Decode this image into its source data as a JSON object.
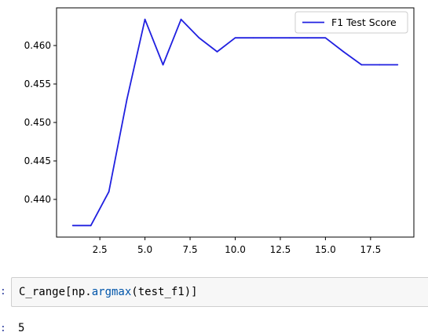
{
  "chart_data": {
    "type": "line",
    "series": [
      {
        "name": "F1 Test Score",
        "color": "#2020e0",
        "points": [
          [
            1,
            0.4366
          ],
          [
            2,
            0.4366
          ],
          [
            3,
            0.441
          ],
          [
            4,
            0.453
          ],
          [
            5,
            0.4634
          ],
          [
            6,
            0.4575
          ],
          [
            7,
            0.4634
          ],
          [
            8,
            0.461
          ],
          [
            9,
            0.4592
          ],
          [
            10,
            0.461
          ],
          [
            11,
            0.461
          ],
          [
            12,
            0.461
          ],
          [
            13,
            0.461
          ],
          [
            14,
            0.461
          ],
          [
            15,
            0.461
          ],
          [
            16,
            0.4592
          ],
          [
            17,
            0.4575
          ],
          [
            18,
            0.4575
          ],
          [
            19,
            0.4575
          ]
        ]
      }
    ],
    "xlim": [
      0.1,
      19.9
    ],
    "ylim": [
      0.4351,
      0.4649
    ],
    "x_ticks": [
      2.5,
      5.0,
      7.5,
      10.0,
      12.5,
      15.0,
      17.5
    ],
    "x_tick_labels": [
      "2.5",
      "5.0",
      "7.5",
      "10.0",
      "12.5",
      "15.0",
      "17.5"
    ],
    "y_ticks": [
      0.44,
      0.445,
      0.45,
      0.455,
      0.46
    ],
    "y_tick_labels": [
      "0.440",
      "0.445",
      "0.450",
      "0.455",
      "0.460"
    ],
    "legend_position": "top-right",
    "grid": false,
    "title": "",
    "xlabel": "",
    "ylabel": ""
  },
  "notebook": {
    "input_prompt": ":",
    "code": {
      "part1": "C_range[np.",
      "func": "argmax",
      "part2": "(test_f1)]"
    },
    "output_prompt": ":",
    "output_value": "5"
  }
}
